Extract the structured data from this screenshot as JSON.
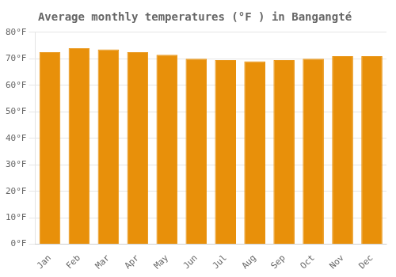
{
  "chart_data": {
    "type": "bar",
    "title": "Average monthly temperatures (°F ) in Bangangté",
    "categories": [
      "Jan",
      "Feb",
      "Mar",
      "Apr",
      "May",
      "Jun",
      "Jul",
      "Aug",
      "Sep",
      "Oct",
      "Nov",
      "Dec"
    ],
    "values": [
      72.5,
      74.0,
      73.5,
      72.5,
      71.5,
      70.0,
      69.5,
      69.0,
      69.5,
      70.0,
      71.0,
      71.0
    ],
    "color": "#E8900A",
    "ylim": [
      0,
      80
    ],
    "yticks": [
      {
        "value": 0,
        "label": "0°F"
      },
      {
        "value": 10,
        "label": "10°F"
      },
      {
        "value": 20,
        "label": "20°F"
      },
      {
        "value": 30,
        "label": "30°F"
      },
      {
        "value": 40,
        "label": "40°F"
      },
      {
        "value": 50,
        "label": "50°F"
      },
      {
        "value": 60,
        "label": "60°F"
      },
      {
        "value": 70,
        "label": "70°F"
      },
      {
        "value": 80,
        "label": "80°F"
      }
    ],
    "grid": true
  }
}
